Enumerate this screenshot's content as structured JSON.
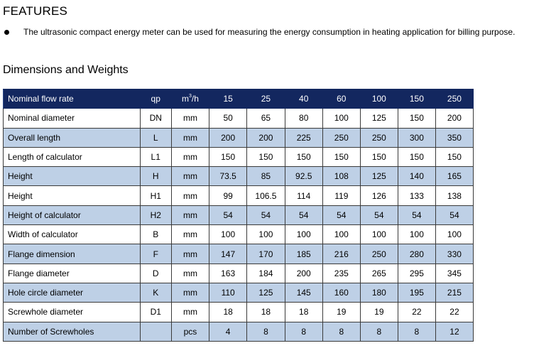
{
  "features": {
    "title": "FEATURES",
    "bullet": "The ultrasonic compact energy meter can be used for measuring the energy consumption in heating application for billing purpose."
  },
  "dimensions": {
    "title": "Dimensions and Weights",
    "header": {
      "name": "Nominal flow rate",
      "symbol": "qp",
      "unit_base": "m",
      "unit_sup": "3",
      "unit_tail": "/h",
      "values": [
        "15",
        "25",
        "40",
        "60",
        "100",
        "150",
        "250"
      ]
    },
    "rows": [
      {
        "name": "Nominal diameter",
        "symbol": "DN",
        "unit": "mm",
        "values": [
          "50",
          "65",
          "80",
          "100",
          "125",
          "150",
          "200"
        ]
      },
      {
        "name": "Overall length",
        "symbol": "L",
        "unit": "mm",
        "values": [
          "200",
          "200",
          "225",
          "250",
          "250",
          "300",
          "350"
        ]
      },
      {
        "name": "Length of calculator",
        "symbol": "L1",
        "unit": "mm",
        "values": [
          "150",
          "150",
          "150",
          "150",
          "150",
          "150",
          "150"
        ]
      },
      {
        "name": "Height",
        "symbol": "H",
        "unit": "mm",
        "values": [
          "73.5",
          "85",
          "92.5",
          "108",
          "125",
          "140",
          "165"
        ]
      },
      {
        "name": "Height",
        "symbol": "H1",
        "unit": "mm",
        "values": [
          "99",
          "106.5",
          "114",
          "119",
          "126",
          "133",
          "138"
        ]
      },
      {
        "name": "Height of calculator",
        "symbol": "H2",
        "unit": "mm",
        "values": [
          "54",
          "54",
          "54",
          "54",
          "54",
          "54",
          "54"
        ]
      },
      {
        "name": "Width of calculator",
        "symbol": "B",
        "unit": "mm",
        "values": [
          "100",
          "100",
          "100",
          "100",
          "100",
          "100",
          "100"
        ]
      },
      {
        "name": "Flange dimension",
        "symbol": "F",
        "unit": "mm",
        "values": [
          "147",
          "170",
          "185",
          "216",
          "250",
          "280",
          "330"
        ]
      },
      {
        "name": "Flange diameter",
        "symbol": "D",
        "unit": "mm",
        "values": [
          "163",
          "184",
          "200",
          "235",
          "265",
          "295",
          "345"
        ]
      },
      {
        "name": "Hole circle diameter",
        "symbol": "K",
        "unit": "mm",
        "values": [
          "110",
          "125",
          "145",
          "160",
          "180",
          "195",
          "215"
        ]
      },
      {
        "name": "Screwhole diameter",
        "symbol": "D1",
        "unit": "mm",
        "values": [
          "18",
          "18",
          "18",
          "19",
          "19",
          "22",
          "22"
        ]
      },
      {
        "name": "Number of Screwholes",
        "symbol": "",
        "unit": "pcs",
        "values": [
          "4",
          "8",
          "8",
          "8",
          "8",
          "8",
          "12"
        ]
      }
    ]
  }
}
